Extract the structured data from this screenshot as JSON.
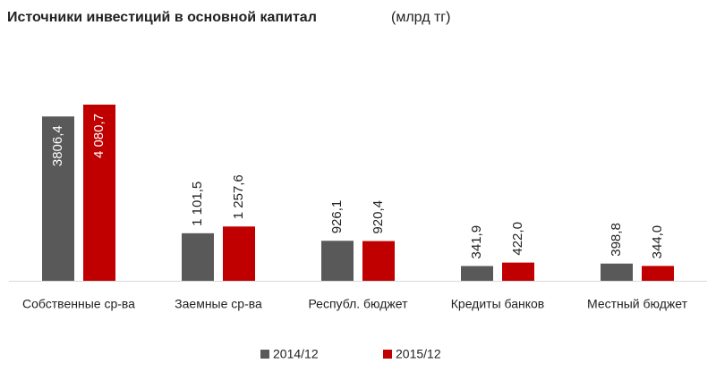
{
  "chart_data": {
    "type": "bar",
    "title": "Источники  инвестиций  в основной  капитал",
    "unit": "(млрд тг)",
    "categories": [
      "Собственные ср-ва",
      "Заемные ср-ва",
      "Республ. бюджет",
      "Кредиты банков",
      "Местный бюджет"
    ],
    "series": [
      {
        "name": "2014/12",
        "color": "#595959",
        "values": [
          3806.4,
          1101.5,
          926.1,
          341.9,
          398.8
        ],
        "value_labels": [
          "3806,4",
          "1 101,5",
          "926,1",
          "341,9",
          "398,8"
        ]
      },
      {
        "name": "2015/12",
        "color": "#c00000",
        "values": [
          4080.7,
          1257.6,
          920.4,
          422.0,
          344.0
        ],
        "value_labels": [
          "4 080,7",
          "1 257,6",
          "920,4",
          "422,0",
          "344,0"
        ]
      }
    ],
    "legend": "bottom"
  }
}
